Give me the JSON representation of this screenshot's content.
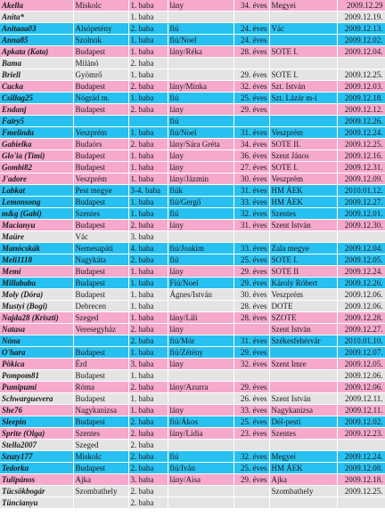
{
  "palette": {
    "pink": "#f6a8cd",
    "blue": "#27c0f1",
    "gray": "#e4e4e4"
  },
  "rows": [
    {
      "color": "pink",
      "name": "Akella",
      "city": "Miskolc",
      "baby": "1. baba",
      "gender": "lány",
      "age": "34. éves",
      "hospital": "Megyei",
      "date": "2009.12.29"
    },
    {
      "color": "gray",
      "name": "Anita*",
      "city": "",
      "baby": "1. baba",
      "gender": "",
      "age": "",
      "hospital": "",
      "date": "2009.12.19."
    },
    {
      "color": "blue",
      "name": "Anitaaa03",
      "city": "Alsópetény",
      "baby": "2. baba",
      "gender": "fiú",
      "age": "24. éves",
      "hospital": "Vác",
      "date": "2009.12.13."
    },
    {
      "color": "blue",
      "name": "Anna85",
      "city": "Szolnok",
      "baby": "1. baba",
      "gender": "fiú/Noel",
      "age": "24. éves",
      "hospital": "",
      "date": "2009.12.02."
    },
    {
      "color": "pink",
      "name": "Apkata (Kata)",
      "city": "Budapest",
      "baby": "1. baba",
      "gender": "lány/Réka",
      "age": "28. éves",
      "hospital": "SOTE I.",
      "date": "2009.12.04."
    },
    {
      "color": "gray",
      "name": "Bama",
      "city": "Milánó",
      "baby": "2. baba",
      "gender": "",
      "age": "",
      "hospital": "",
      "date": ""
    },
    {
      "color": "gray",
      "name": "Briell",
      "city": "Gyömrő",
      "baby": "1. baba",
      "gender": "",
      "age": "29. éves",
      "hospital": "SOTE I.",
      "date": "2009.12.25."
    },
    {
      "color": "pink",
      "name": "Cucka",
      "city": "Budapest",
      "baby": "2. baba",
      "gender": "lány/Minka",
      "age": "32. éves",
      "hospital": "Szt. István",
      "date": "2009.12.03."
    },
    {
      "color": "blue",
      "name": "Csillag25",
      "city": "Nógrád m.",
      "baby": "1. baba",
      "gender": "fiú",
      "age": "25. éves",
      "hospital": "Szt. Lázár m-i",
      "date": "2009.12.18."
    },
    {
      "color": "pink",
      "name": "Endanj",
      "city": "Budapest",
      "baby": "2. baba",
      "gender": "lány",
      "age": "29. éves",
      "hospital": "",
      "date": "2009.12.12."
    },
    {
      "color": "blue",
      "name": "Fairy5",
      "city": "",
      "baby": "",
      "gender": "fiú",
      "age": "",
      "hospital": "",
      "date": "2009.12.26."
    },
    {
      "color": "blue",
      "name": "Fmelinda",
      "city": "Veszprém",
      "baby": "1. baba",
      "gender": "fiú/Noel",
      "age": "31. éves",
      "hospital": "Veszprém",
      "date": "2009.12.24."
    },
    {
      "color": "pink",
      "name": "Gabielka",
      "city": "Budaörs",
      "baby": "2. baba",
      "gender": "lány/Sára Gréta",
      "age": "34. éves",
      "hospital": "SOTE II.",
      "date": "2009.12.25."
    },
    {
      "color": "pink",
      "name": "Glo'ia (Timi)",
      "city": "Budapest",
      "baby": "1. baba",
      "gender": "lány",
      "age": "36. éves",
      "hospital": "Szent János",
      "date": "2009.12.16."
    },
    {
      "color": "pink",
      "name": "Gombi82",
      "city": "Budapest",
      "baby": "1. baba",
      "gender": "lány",
      "age": "27. éves",
      "hospital": "SOTE I.",
      "date": "2009.12.31."
    },
    {
      "color": "pink",
      "name": "J'adore",
      "city": "Veszprém",
      "baby": "1. baba",
      "gender": "lány/Jázmin",
      "age": "30. éves",
      "hospital": "Veszprém",
      "date": "2009.12.09."
    },
    {
      "color": "blue",
      "name": "Labkat",
      "city": "Pest megye",
      "baby": "3-4. baba",
      "gender": "fiúk",
      "age": "31. éves",
      "hospital": "HM ÁEK",
      "date": "2010.01.12."
    },
    {
      "color": "blue",
      "name": "Lemonsong",
      "city": "Budapest",
      "baby": "1. baba",
      "gender": "fiú/Gergő",
      "age": "33. éves",
      "hospital": "HM ÁEK",
      "date": "2009.12.27."
    },
    {
      "color": "blue",
      "name": "m&g (Gabi)",
      "city": "Szentes",
      "baby": "1. baba",
      "gender": "fiú",
      "age": "32. éves",
      "hospital": "Szentes",
      "date": "2009.12.01."
    },
    {
      "color": "pink",
      "name": "Macianyu",
      "city": "Budapest",
      "baby": "2. baba",
      "gender": "lány",
      "age": "31. éves",
      "hospital": "Szent István",
      "date": "2009.12.30."
    },
    {
      "color": "gray",
      "name": "Maüre",
      "city": "Vác",
      "baby": "3. baba",
      "gender": "",
      "age": "",
      "hospital": "",
      "date": ""
    },
    {
      "color": "blue",
      "name": "Manócskák",
      "city": "Nemesapáti",
      "baby": "4. baba",
      "gender": "fiú/Joakim",
      "age": "33. éves",
      "hospital": "Zala megye",
      "date": "2009.12.04."
    },
    {
      "color": "blue",
      "name": "Meli1118",
      "city": "Nagykáta",
      "baby": "2. baba",
      "gender": "fiú",
      "age": "25. éves",
      "hospital": "SOTE I.",
      "date": "2009.12.05."
    },
    {
      "color": "pink",
      "name": "Memi",
      "city": "Budapest",
      "baby": "1. baba",
      "gender": "lány",
      "age": "29. éves",
      "hospital": "SOTE II",
      "date": "2009.12.24."
    },
    {
      "color": "blue",
      "name": "Millababa",
      "city": "Budapest",
      "baby": "1. baba",
      "gender": "Fiú/Noel",
      "age": "29. éves",
      "hospital": "Károly Róbert",
      "date": "2009.12.26."
    },
    {
      "color": "gray",
      "name": "Moly (Dóra)",
      "city": "Budapest",
      "baby": "1. baba",
      "gender": "Ágnes/István",
      "age": "30. éves",
      "hospital": "Veszprém",
      "date": "2009.12.06."
    },
    {
      "color": "gray",
      "name": "Mustyi (Bogi)",
      "city": "Debrecen",
      "baby": "1. baba",
      "gender": "",
      "age": "28. éves",
      "hospital": "DOTE",
      "date": "2009.12.06."
    },
    {
      "color": "pink",
      "name": "Najda28 (Kriszti)",
      "city": "Szeged",
      "baby": "1. baba",
      "gender": "lány/Lili",
      "age": "28. éves",
      "hospital": "SZOTE",
      "date": "2009.12.28."
    },
    {
      "color": "pink",
      "name": "Natasa",
      "city": "Veresegyház",
      "baby": "2. baba",
      "gender": "lány",
      "age": "",
      "hospital": "Szent István",
      "date": "2009.12.27."
    },
    {
      "color": "blue",
      "name": "Nóna",
      "city": "",
      "baby": "2. baba",
      "gender": "fiú/Mór",
      "age": "31. éves",
      "hospital": "Székesfehérvár",
      "date": "2010.01.10."
    },
    {
      "color": "blue",
      "name": "O'hara",
      "city": "Budapest",
      "baby": "1. baba",
      "gender": "fiú/Zétény",
      "age": "29. éves",
      "hospital": "",
      "date": "2009.12.07."
    },
    {
      "color": "pink",
      "name": "Pökica",
      "city": "Érd",
      "baby": "3. baba",
      "gender": "lány",
      "age": "32. éves",
      "hospital": "Szent Imre",
      "date": "2009.12.05."
    },
    {
      "color": "gray",
      "name": "Pompom81",
      "city": "Budapest",
      "baby": "1. baba",
      "gender": "",
      "age": "",
      "hospital": "",
      "date": "2009.12.06."
    },
    {
      "color": "pink",
      "name": "Pumipumi",
      "city": "Róma",
      "baby": "2. baba",
      "gender": "lány/Azurra",
      "age": "29. éves",
      "hospital": "",
      "date": "2009.12.06."
    },
    {
      "color": "gray",
      "name": "Schwarguevera",
      "city": "Budapest",
      "baby": "1. baba",
      "gender": "",
      "age": "26. éves",
      "hospital": "Szent István",
      "date": "2009.12.11."
    },
    {
      "color": "pink",
      "name": "She76",
      "city": "Nagykanizsa",
      "baby": "1. baba",
      "gender": "lány",
      "age": "33. éves",
      "hospital": "Nagykanizsa",
      "date": "2009.12.11."
    },
    {
      "color": "blue",
      "name": "Sleepin",
      "city": "Budapest",
      "baby": "2. baba",
      "gender": "fiú/Ákos",
      "age": "25. éves",
      "hospital": "Dél-pesti",
      "date": "2009.12.02."
    },
    {
      "color": "pink",
      "name": "Sprite (Olga)",
      "city": "Szentes",
      "baby": "2. baba",
      "gender": "lány/Lídia",
      "age": "23. éves",
      "hospital": "Szentes",
      "date": "2009.12.23."
    },
    {
      "color": "gray",
      "name": "Stella2007",
      "city": "Szeged",
      "baby": "2. baba",
      "gender": "",
      "age": "",
      "hospital": "",
      "date": ""
    },
    {
      "color": "blue",
      "name": "Szuzy177",
      "city": "Miskolc",
      "baby": "2. baba",
      "gender": "fiú",
      "age": "32. éves",
      "hospital": "Megyei",
      "date": "2009.12.24."
    },
    {
      "color": "blue",
      "name": "Tedorka",
      "city": "Budapest",
      "baby": "2. baba",
      "gender": "fiú/Iván",
      "age": "25. éves",
      "hospital": "HM ÁEK",
      "date": "2009.12.08."
    },
    {
      "color": "pink",
      "name": "Tulipános",
      "city": "Ajka",
      "baby": "3. baba",
      "gender": "lány/Aisa",
      "age": "29. éves",
      "hospital": "Ajka",
      "date": "2009.12.18."
    },
    {
      "color": "gray",
      "name": "Tücsökbogár",
      "city": "Szombathely",
      "baby": "2. baba",
      "gender": "",
      "age": "",
      "hospital": "Szombathely",
      "date": "2009.12.25."
    },
    {
      "color": "gray",
      "name": "Tüncianyu",
      "city": "",
      "baby": "2. baba",
      "gender": "",
      "age": "",
      "hospital": "",
      "date": ""
    }
  ]
}
